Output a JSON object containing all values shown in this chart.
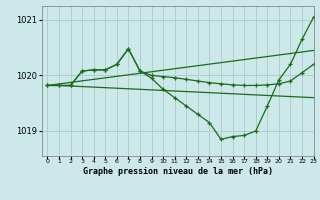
{
  "title": "Graphe pression niveau de la mer (hPa)",
  "bg_color": "#cce8e8",
  "grid_color": "#aacccc",
  "line_color": "#1a6b1a",
  "xlim": [
    -0.5,
    23
  ],
  "ylim": [
    1018.55,
    1021.25
  ],
  "yticks": [
    1019,
    1020,
    1021
  ],
  "lines": [
    {
      "x": [
        0,
        1,
        2,
        3,
        4,
        5,
        6,
        7,
        8,
        9,
        10,
        11,
        12,
        13,
        14,
        15,
        16,
        17,
        18,
        19,
        20,
        21,
        22,
        23
      ],
      "y": [
        1019.82,
        1019.82,
        1019.81,
        1019.8,
        1019.79,
        1019.78,
        1019.77,
        1019.76,
        1019.75,
        1019.74,
        1019.73,
        1019.72,
        1019.71,
        1019.7,
        1019.69,
        1019.68,
        1019.67,
        1019.66,
        1019.65,
        1019.64,
        1019.63,
        1019.62,
        1019.61,
        1019.6
      ],
      "has_marker": false,
      "lw": 0.9
    },
    {
      "x": [
        0,
        23
      ],
      "y": [
        1019.82,
        1020.45
      ],
      "has_marker": false,
      "lw": 0.9
    },
    {
      "x": [
        0,
        1,
        2,
        3,
        4,
        5,
        6,
        7,
        8,
        9,
        10,
        11,
        12,
        13,
        14,
        15,
        16,
        17,
        18,
        19,
        20,
        21,
        22,
        23
      ],
      "y": [
        1019.82,
        1019.82,
        1019.82,
        1020.08,
        1020.1,
        1020.1,
        1020.2,
        1020.48,
        1020.08,
        1020.0,
        1019.98,
        1019.96,
        1019.93,
        1019.9,
        1019.87,
        1019.85,
        1019.83,
        1019.82,
        1019.82,
        1019.83,
        1019.85,
        1019.9,
        1020.05,
        1020.2
      ],
      "has_marker": true,
      "lw": 0.9
    },
    {
      "x": [
        0,
        1,
        2,
        3,
        4,
        5,
        6,
        7,
        8,
        9,
        10,
        11,
        12,
        13,
        14,
        15,
        16,
        17,
        18,
        19,
        20,
        21,
        22,
        23
      ],
      "y": [
        1019.82,
        1019.82,
        1019.82,
        1020.08,
        1020.1,
        1020.1,
        1020.2,
        1020.48,
        1020.08,
        1019.95,
        1019.75,
        1019.6,
        1019.45,
        1019.3,
        1019.15,
        1018.85,
        1018.9,
        1018.92,
        1019.0,
        1019.45,
        1019.92,
        1020.2,
        1020.65,
        1021.05
      ],
      "has_marker": true,
      "lw": 0.9
    }
  ]
}
